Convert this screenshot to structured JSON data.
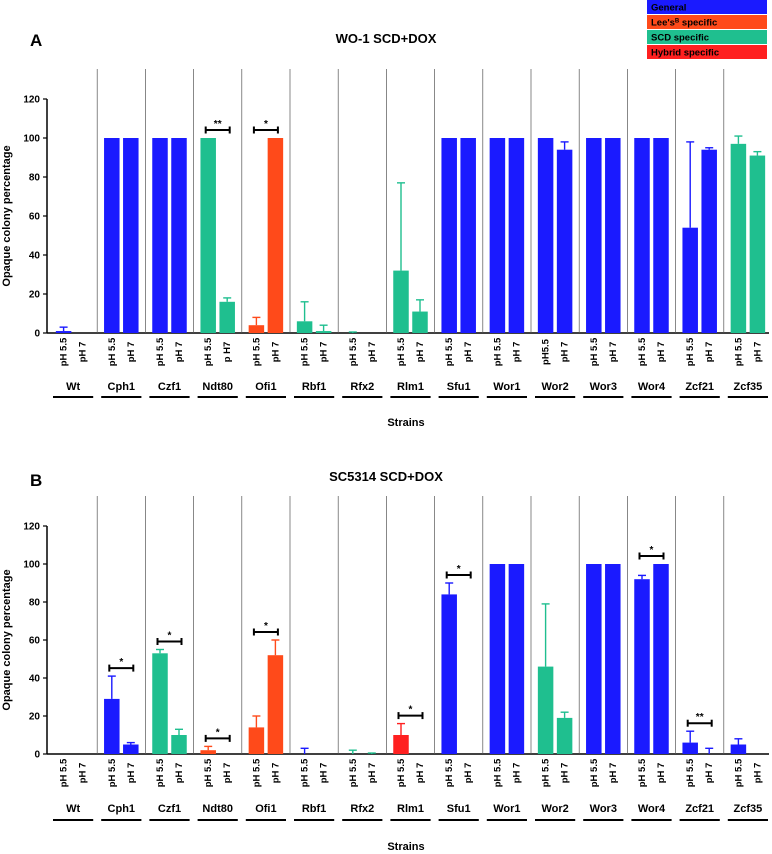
{
  "legend": [
    {
      "key": "general",
      "label": "General",
      "color": "#1a1aff"
    },
    {
      "key": "lees",
      "label": "Lee's",
      "label_sup": "B",
      "label_tail": " specific",
      "color": "#ff4a1a"
    },
    {
      "key": "scd",
      "label": "SCD specific",
      "color": "#1fbf8f"
    },
    {
      "key": "hybrid",
      "label": "Hybrid specific",
      "color": "#ff2020"
    }
  ],
  "chart_data": [
    {
      "type": "bar",
      "panel": "A",
      "title": "WO-1 SCD+DOX",
      "ylabel": "Opaque colony percentage",
      "xlabel": "Strains",
      "ylim": [
        0,
        120
      ],
      "yticks": [
        "0",
        "20",
        "40",
        "60",
        "80",
        "100",
        "120"
      ],
      "groups": [
        {
          "strain": "Wt",
          "cat": "general",
          "conditions": [
            "pH 5.5",
            "pH 7"
          ],
          "values": [
            1,
            0
          ],
          "errors": [
            2,
            0
          ]
        },
        {
          "strain": "Cph1",
          "cat": "general",
          "conditions": [
            "pH 5.5",
            "pH 7"
          ],
          "values": [
            100,
            100
          ],
          "errors": [
            0,
            0
          ]
        },
        {
          "strain": "Czf1",
          "cat": "general",
          "conditions": [
            "pH 5.5",
            "pH 7"
          ],
          "values": [
            100,
            100
          ],
          "errors": [
            0,
            0
          ]
        },
        {
          "strain": "Ndt80",
          "cat": "scd",
          "conditions": [
            "pH 5.5",
            "p H7"
          ],
          "values": [
            100,
            16
          ],
          "errors": [
            0,
            2
          ],
          "sig": "**"
        },
        {
          "strain": "Ofi1",
          "cat": "lees",
          "conditions": [
            "pH 5.5",
            "pH 7"
          ],
          "values": [
            4,
            100
          ],
          "errors": [
            4,
            0
          ],
          "sig": "*"
        },
        {
          "strain": "Rbf1",
          "cat": "scd",
          "conditions": [
            "pH 5.5",
            "pH 7"
          ],
          "values": [
            6,
            1
          ],
          "errors": [
            10,
            3
          ]
        },
        {
          "strain": "Rfx2",
          "cat": "scd",
          "conditions": [
            "pH 5.5",
            "pH 7"
          ],
          "values": [
            0,
            0
          ],
          "errors": [
            0.5,
            0
          ]
        },
        {
          "strain": "Rlm1",
          "cat": "scd",
          "conditions": [
            "pH 5.5",
            "pH 7"
          ],
          "values": [
            32,
            11
          ],
          "errors": [
            45,
            6
          ]
        },
        {
          "strain": "Sfu1",
          "cat": "general",
          "conditions": [
            "pH 5.5",
            "pH 7"
          ],
          "values": [
            100,
            100
          ],
          "errors": [
            0,
            0
          ]
        },
        {
          "strain": "Wor1",
          "cat": "general",
          "conditions": [
            "pH 5.5",
            "pH 7"
          ],
          "values": [
            100,
            100
          ],
          "errors": [
            0,
            0
          ]
        },
        {
          "strain": "Wor2",
          "cat": "general",
          "conditions": [
            "pH5.5",
            "pH 7"
          ],
          "values": [
            100,
            94
          ],
          "errors": [
            0,
            4
          ]
        },
        {
          "strain": "Wor3",
          "cat": "general",
          "conditions": [
            "pH 5.5",
            "pH 7"
          ],
          "values": [
            100,
            100
          ],
          "errors": [
            0,
            0
          ]
        },
        {
          "strain": "Wor4",
          "cat": "general",
          "conditions": [
            "pH 5.5",
            "pH 7"
          ],
          "values": [
            100,
            100
          ],
          "errors": [
            0,
            0
          ]
        },
        {
          "strain": "Zcf21",
          "cat": "general",
          "conditions": [
            "pH 5.5",
            "pH 7"
          ],
          "values": [
            54,
            94
          ],
          "errors": [
            44,
            1
          ]
        },
        {
          "strain": "Zcf35",
          "cat": "scd",
          "conditions": [
            "pH 5.5",
            "pH 7"
          ],
          "values": [
            97,
            91
          ],
          "errors": [
            4,
            2
          ]
        }
      ]
    },
    {
      "type": "bar",
      "panel": "B",
      "title": "SC5314 SCD+DOX",
      "ylabel": "Opaque colony percentage",
      "xlabel": "Strains",
      "ylim": [
        0,
        120
      ],
      "yticks": [
        "0",
        "20",
        "40",
        "60",
        "80",
        "100",
        "120"
      ],
      "groups": [
        {
          "strain": "Wt",
          "cat": "general",
          "conditions": [
            "pH 5.5",
            "pH 7"
          ],
          "values": [
            0,
            0
          ],
          "errors": [
            0,
            0
          ]
        },
        {
          "strain": "Cph1",
          "cat": "general",
          "conditions": [
            "pH 5.5",
            "pH 7"
          ],
          "values": [
            29,
            5
          ],
          "errors": [
            12,
            1
          ],
          "sig": "*"
        },
        {
          "strain": "Czf1",
          "cat": "scd",
          "conditions": [
            "pH 5.5",
            "pH 7"
          ],
          "values": [
            53,
            10
          ],
          "errors": [
            2,
            3
          ],
          "sig": "*"
        },
        {
          "strain": "Ndt80",
          "cat": "lees",
          "conditions": [
            "pH 5.5",
            "pH 7"
          ],
          "values": [
            2,
            0
          ],
          "errors": [
            2,
            0
          ],
          "sig": "*"
        },
        {
          "strain": "Ofi1",
          "cat": "lees",
          "conditions": [
            "pH 5.5",
            "pH 7"
          ],
          "values": [
            14,
            52
          ],
          "errors": [
            6,
            8
          ],
          "sig": "*"
        },
        {
          "strain": "Rbf1",
          "cat": "general",
          "conditions": [
            "pH 5.5",
            "pH 7"
          ],
          "values": [
            0,
            0
          ],
          "errors": [
            3,
            0
          ]
        },
        {
          "strain": "Rfx2",
          "cat": "scd",
          "conditions": [
            "pH 5.5",
            "pH 7"
          ],
          "values": [
            0,
            0
          ],
          "errors": [
            2,
            0.5
          ]
        },
        {
          "strain": "Rlm1",
          "cat": "hybrid",
          "conditions": [
            "pH 5.5",
            "pH 7"
          ],
          "values": [
            10,
            0
          ],
          "errors": [
            6,
            0
          ],
          "sig": "*"
        },
        {
          "strain": "Sfu1",
          "cat": "general",
          "conditions": [
            "pH 5.5",
            "pH 7"
          ],
          "values": [
            84,
            0
          ],
          "errors": [
            6,
            0
          ],
          "sig": "*"
        },
        {
          "strain": "Wor1",
          "cat": "general",
          "conditions": [
            "pH 5.5",
            "pH 7"
          ],
          "values": [
            100,
            100
          ],
          "errors": [
            0,
            0
          ]
        },
        {
          "strain": "Wor2",
          "cat": "scd",
          "conditions": [
            "pH 5.5",
            "pH 7"
          ],
          "values": [
            46,
            19
          ],
          "errors": [
            33,
            3
          ]
        },
        {
          "strain": "Wor3",
          "cat": "general",
          "conditions": [
            "pH 5.5",
            "pH 7"
          ],
          "values": [
            100,
            100
          ],
          "errors": [
            0,
            0
          ]
        },
        {
          "strain": "Wor4",
          "cat": "general",
          "conditions": [
            "pH 5.5",
            "pH 7"
          ],
          "values": [
            92,
            100
          ],
          "errors": [
            2,
            0
          ],
          "sig": "*"
        },
        {
          "strain": "Zcf21",
          "cat": "general",
          "conditions": [
            "pH 5.5",
            "pH 7"
          ],
          "values": [
            6,
            0
          ],
          "errors": [
            6,
            3
          ],
          "sig": "**"
        },
        {
          "strain": "Zcf35",
          "cat": "general",
          "conditions": [
            "pH 5.5",
            "pH 7"
          ],
          "values": [
            5,
            0
          ],
          "errors": [
            3,
            0
          ]
        }
      ]
    }
  ]
}
